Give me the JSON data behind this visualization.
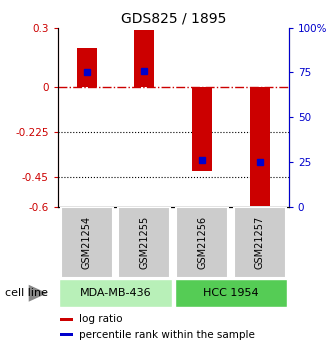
{
  "title": "GDS825 / 1895",
  "samples": [
    "GSM21254",
    "GSM21255",
    "GSM21256",
    "GSM21257"
  ],
  "log_ratios": [
    0.2,
    0.29,
    -0.42,
    -0.595
  ],
  "percentile_ranks": [
    75,
    76,
    26,
    25
  ],
  "cell_line_configs": [
    {
      "label": "MDA-MB-436",
      "xmin": -0.5,
      "xmax": 1.5,
      "color": "#b8f0b8"
    },
    {
      "label": "HCC 1954",
      "xmin": 1.5,
      "xmax": 3.5,
      "color": "#55cc55"
    }
  ],
  "bar_color": "#cc0000",
  "percentile_color": "#0000cc",
  "ylim_left": [
    -0.6,
    0.3
  ],
  "ylim_right": [
    0,
    100
  ],
  "yticks_left": [
    0.3,
    0,
    -0.225,
    -0.45,
    -0.6
  ],
  "yticks_right": [
    100,
    75,
    50,
    25,
    0
  ],
  "hlines_dotted": [
    -0.225,
    -0.45
  ],
  "hline_zero_color": "#cc0000",
  "bar_width": 0.35,
  "sample_box_color": "#cccccc",
  "cell_line_label": "cell line",
  "legend_items": [
    {
      "color": "#cc0000",
      "label": "log ratio"
    },
    {
      "color": "#0000cc",
      "label": "percentile rank within the sample"
    }
  ]
}
